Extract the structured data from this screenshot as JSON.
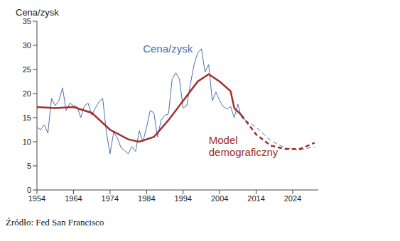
{
  "chart_data": {
    "type": "line",
    "y_label": "Cena/zysk",
    "source": "Źródło: Fed San Francisco",
    "xlim": [
      1954,
      2031
    ],
    "xticks": [
      1954,
      1964,
      1974,
      1984,
      1994,
      2004,
      2014,
      2024
    ],
    "ylim": [
      0,
      35
    ],
    "yticks": [
      0,
      5,
      10,
      15,
      20,
      25,
      30,
      35
    ],
    "grid": false,
    "series": [
      {
        "name": "Cena/zysk",
        "color": "#4a6fb0",
        "line_style": "solid",
        "x": [
          1954,
          1955,
          1956,
          1957,
          1958,
          1959,
          1960,
          1961,
          1962,
          1963,
          1964,
          1965,
          1966,
          1967,
          1968,
          1969,
          1970,
          1971,
          1972,
          1973,
          1974,
          1975,
          1976,
          1977,
          1978,
          1979,
          1980,
          1981,
          1982,
          1983,
          1984,
          1985,
          1986,
          1987,
          1988,
          1989,
          1990,
          1991,
          1992,
          1993,
          1994,
          1995,
          1996,
          1997,
          1998,
          1999,
          2000,
          2001,
          2002,
          2003,
          2004,
          2005,
          2006,
          2007,
          2008,
          2009,
          2010,
          2011
        ],
        "values": [
          13,
          12.5,
          13.5,
          11.8,
          19,
          17.5,
          18.5,
          21.2,
          16.5,
          18,
          17.5,
          17.3,
          15,
          17.5,
          18,
          15.5,
          17,
          18.3,
          19,
          12,
          7.5,
          12,
          10.8,
          8.8,
          8.2,
          7.5,
          9,
          8,
          12.3,
          10,
          13,
          16.5,
          16,
          11,
          14.5,
          15.5,
          15.8,
          23,
          24.3,
          23,
          17,
          17.5,
          22,
          26,
          28.5,
          29.3,
          24.5,
          26,
          18.5,
          20.3,
          18.5,
          17.3,
          16.8,
          17.3,
          15,
          17.8,
          15,
          14.5
        ]
      },
      {
        "name": "Cena/zysk",
        "color": "#4a6fb0",
        "line_style": "dashed",
        "x": [
          2011,
          2014,
          2018,
          2022,
          2026,
          2030
        ],
        "values": [
          14.5,
          13,
          10.2,
          8.7,
          8.3,
          9
        ]
      },
      {
        "name": "Model demograficzny",
        "color": "#a0302a",
        "line_style": "solid",
        "x": [
          1954,
          1959,
          1964,
          1969,
          1974,
          1979,
          1982,
          1986,
          1990,
          1994,
          1998,
          2001,
          2004,
          2007,
          2008,
          2010
        ],
        "values": [
          17.2,
          17,
          17.2,
          16,
          12.5,
          10.5,
          10,
          11,
          14.5,
          18.5,
          22.5,
          24,
          22.5,
          20.5,
          17,
          15.5
        ]
      },
      {
        "name": "Model demograficzny",
        "color": "#a0302a",
        "line_style": "dashed",
        "x": [
          2010,
          2014,
          2018,
          2022,
          2026,
          2030
        ],
        "values": [
          15.5,
          11.5,
          9.2,
          8.5,
          8.5,
          9.8
        ]
      }
    ],
    "annotations": [
      {
        "text": "Cena/zysk",
        "x": 1983,
        "y": 28.5,
        "color": "#4a6fb0"
      },
      {
        "text": "Model demograficzny",
        "x": 2001,
        "y": 9.5,
        "color": "#a0302a"
      }
    ]
  }
}
